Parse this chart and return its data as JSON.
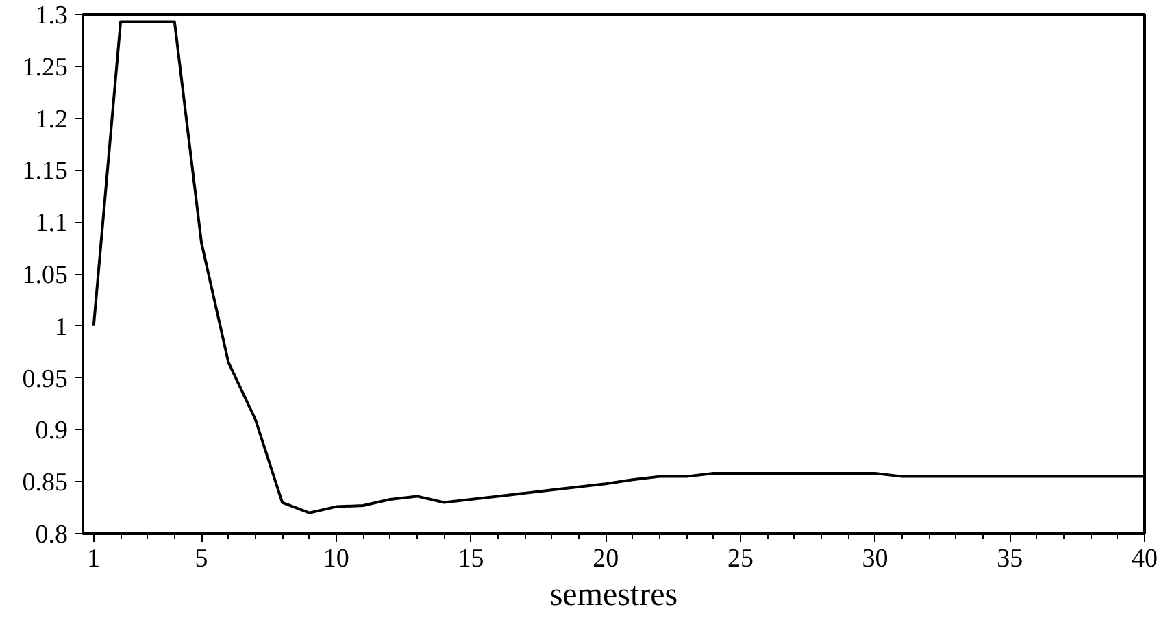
{
  "chart_data": {
    "type": "line",
    "xlabel": "semestres",
    "x": [
      1,
      2,
      3,
      4,
      5,
      6,
      7,
      8,
      9,
      10,
      11,
      12,
      13,
      14,
      15,
      16,
      17,
      18,
      19,
      20,
      21,
      22,
      23,
      24,
      25,
      26,
      27,
      28,
      29,
      30,
      31,
      32,
      33,
      34,
      35,
      36,
      37,
      38,
      39,
      40
    ],
    "series": [
      {
        "color": "#000000",
        "values": [
          1.0,
          1.293,
          1.293,
          1.293,
          1.08,
          0.965,
          0.91,
          0.83,
          0.82,
          0.826,
          0.827,
          0.833,
          0.836,
          0.83,
          0.833,
          0.836,
          0.839,
          0.842,
          0.845,
          0.848,
          0.852,
          0.855,
          0.855,
          0.858,
          0.858,
          0.858,
          0.858,
          0.858,
          0.858,
          0.858,
          0.855,
          0.855,
          0.855,
          0.855,
          0.855,
          0.855,
          0.855,
          0.855,
          0.855,
          0.855
        ]
      }
    ],
    "xlim": [
      0.6,
      40
    ],
    "ylim": [
      0.8,
      1.3
    ],
    "xticks": [
      1,
      5,
      10,
      15,
      20,
      25,
      30,
      35,
      40
    ],
    "yticks": [
      0.8,
      0.85,
      0.9,
      0.95,
      1,
      1.05,
      1.1,
      1.15,
      1.2,
      1.25,
      1.3
    ],
    "grid": false,
    "line_style": "solid",
    "marker": "none"
  }
}
